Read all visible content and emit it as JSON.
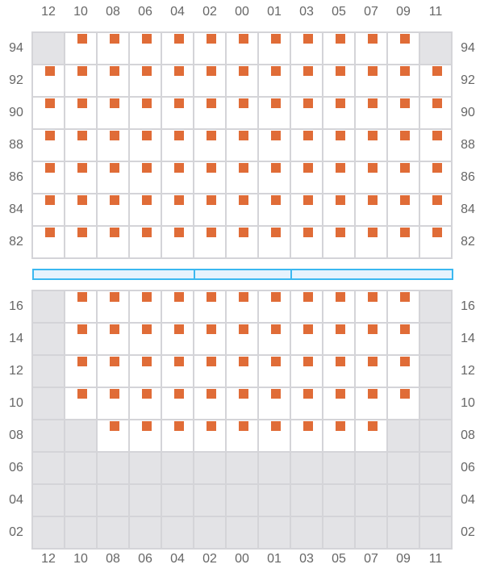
{
  "columns": [
    "12",
    "10",
    "08",
    "06",
    "04",
    "02",
    "00",
    "01",
    "03",
    "05",
    "07",
    "09",
    "11"
  ],
  "legend": {
    "x": "available seat",
    "-": "unavailable"
  },
  "colors": {
    "seat": "#e06c37",
    "unavailable": "#e3e3e6",
    "grid": "#d4d4d8",
    "divider": "#3bb8f0"
  },
  "sections": [
    {
      "name": "upper",
      "rows": [
        {
          "label": "94",
          "seats": "-xxxxxxxxxxx-"
        },
        {
          "label": "92",
          "seats": "xxxxxxxxxxxxx"
        },
        {
          "label": "90",
          "seats": "xxxxxxxxxxxxx"
        },
        {
          "label": "88",
          "seats": "xxxxxxxxxxxxx"
        },
        {
          "label": "86",
          "seats": "xxxxxxxxxxxxx"
        },
        {
          "label": "84",
          "seats": "xxxxxxxxxxxxx"
        },
        {
          "label": "82",
          "seats": "xxxxxxxxxxxxx"
        }
      ]
    },
    {
      "name": "lower",
      "rows": [
        {
          "label": "16",
          "seats": "-xxxxxxxxxxx-"
        },
        {
          "label": "14",
          "seats": "-xxxxxxxxxxx-"
        },
        {
          "label": "12",
          "seats": "-xxxxxxxxxxx-"
        },
        {
          "label": "10",
          "seats": "-xxxxxxxxxxx-"
        },
        {
          "label": "08",
          "seats": "--xxxxxxxxx--"
        },
        {
          "label": "06",
          "seats": "-------------"
        },
        {
          "label": "04",
          "seats": "-------------"
        },
        {
          "label": "02",
          "seats": "-------------"
        }
      ]
    }
  ],
  "divider_segments": 3
}
